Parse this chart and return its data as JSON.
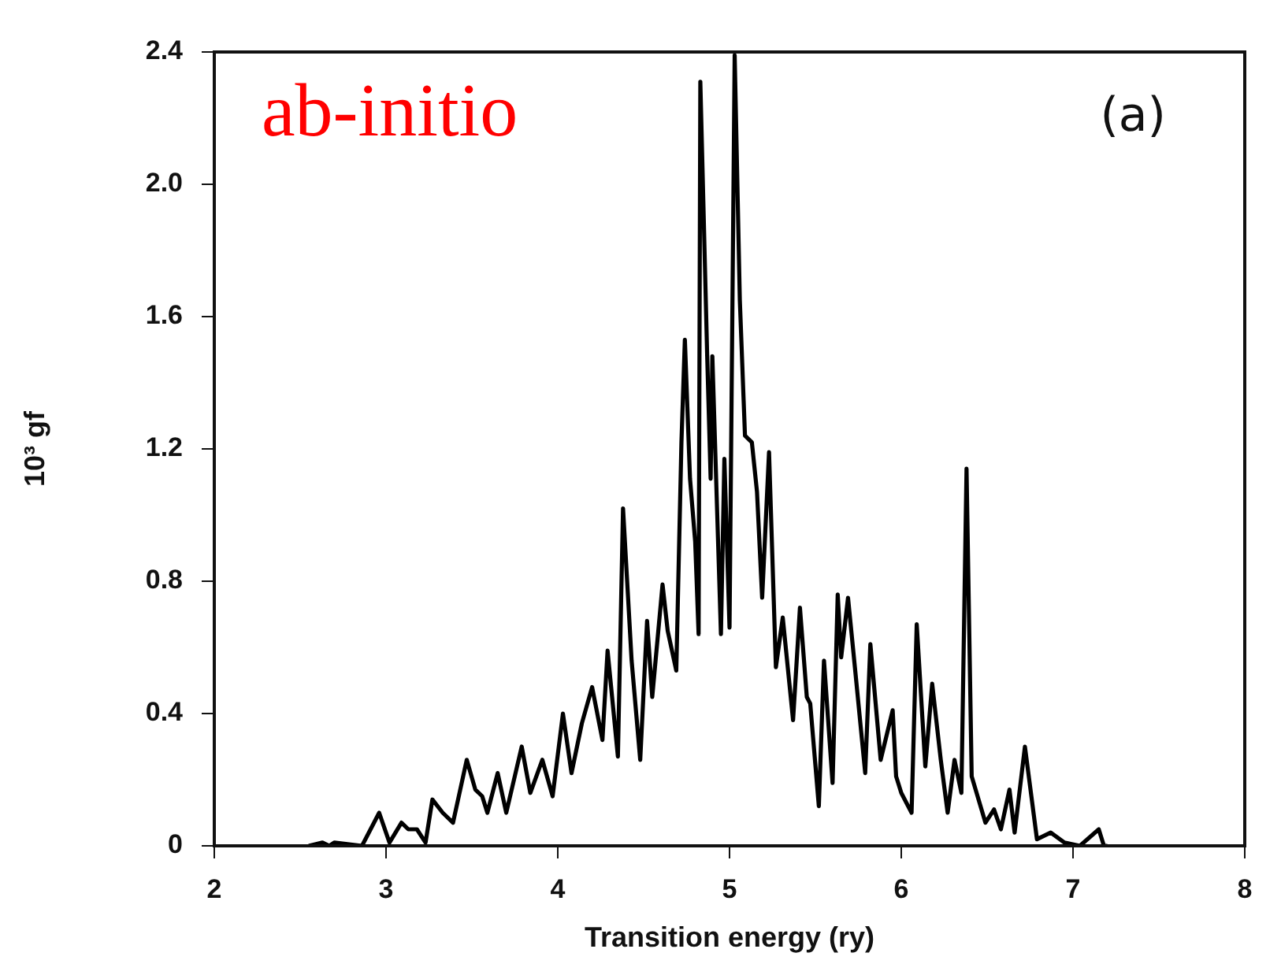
{
  "chart_data": {
    "type": "line",
    "xlabel": "Transition energy (ry)",
    "ylabel": "10³ gf",
    "annotations": [
      "ab-initio",
      "(a)"
    ],
    "xlim": [
      2,
      8
    ],
    "xticks": [
      2,
      3,
      4,
      5,
      6,
      7,
      8
    ],
    "ylim": [
      0,
      2.4
    ],
    "yticks": [
      0,
      0.4,
      0.8,
      1.2,
      1.6,
      {
        "value": 2,
        "label": "2.0"
      },
      2.4
    ],
    "grid": false,
    "legend": false,
    "marker": "none",
    "line_style": "solid",
    "series": [
      {
        "color": "#000000",
        "x": [
          2.55,
          2.63,
          2.67,
          2.7,
          2.86,
          2.96,
          3.02,
          3.09,
          3.13,
          3.18,
          3.23,
          3.27,
          3.33,
          3.39,
          3.47,
          3.52,
          3.56,
          3.59,
          3.65,
          3.7,
          3.79,
          3.84,
          3.91,
          3.97,
          4.03,
          4.08,
          4.14,
          4.2,
          4.26,
          4.29,
          4.35,
          4.38,
          4.43,
          4.48,
          4.52,
          4.55,
          4.61,
          4.64,
          4.69,
          4.72,
          4.74,
          4.77,
          4.8,
          4.82,
          4.83,
          4.87,
          4.89,
          4.9,
          4.95,
          4.97,
          5.0,
          5.03,
          5.06,
          5.09,
          5.13,
          5.16,
          5.19,
          5.23,
          5.27,
          5.31,
          5.37,
          5.41,
          5.45,
          5.47,
          5.52,
          5.55,
          5.6,
          5.63,
          5.65,
          5.69,
          5.73,
          5.79,
          5.82,
          5.88,
          5.95,
          5.97,
          6.0,
          6.06,
          6.09,
          6.14,
          6.18,
          6.23,
          6.27,
          6.31,
          6.35,
          6.38,
          6.41,
          6.49,
          6.54,
          6.58,
          6.63,
          6.66,
          6.72,
          6.79,
          6.87,
          6.95,
          7.04,
          7.15,
          7.18,
          7.2
        ],
        "values": [
          0,
          0.01,
          0,
          0.01,
          0,
          0.1,
          0.01,
          0.07,
          0.05,
          0.05,
          0.01,
          0.14,
          0.1,
          0.07,
          0.26,
          0.17,
          0.15,
          0.1,
          0.22,
          0.1,
          0.3,
          0.16,
          0.26,
          0.15,
          0.4,
          0.22,
          0.37,
          0.48,
          0.32,
          0.59,
          0.27,
          1.02,
          0.56,
          0.26,
          0.68,
          0.45,
          0.79,
          0.65,
          0.53,
          1.22,
          1.53,
          1.11,
          0.92,
          0.64,
          2.31,
          1.48,
          1.11,
          1.48,
          0.64,
          1.17,
          0.66,
          2.39,
          1.65,
          1.24,
          1.22,
          1.07,
          0.75,
          1.19,
          0.54,
          0.69,
          0.38,
          0.72,
          0.45,
          0.43,
          0.12,
          0.56,
          0.19,
          0.76,
          0.57,
          0.75,
          0.54,
          0.22,
          0.61,
          0.26,
          0.41,
          0.21,
          0.16,
          0.1,
          0.67,
          0.24,
          0.49,
          0.26,
          0.1,
          0.26,
          0.16,
          1.14,
          0.21,
          0.07,
          0.11,
          0.05,
          0.17,
          0.04,
          0.3,
          0.02,
          0.04,
          0.01,
          0,
          0.05,
          0,
          0
        ]
      }
    ]
  }
}
